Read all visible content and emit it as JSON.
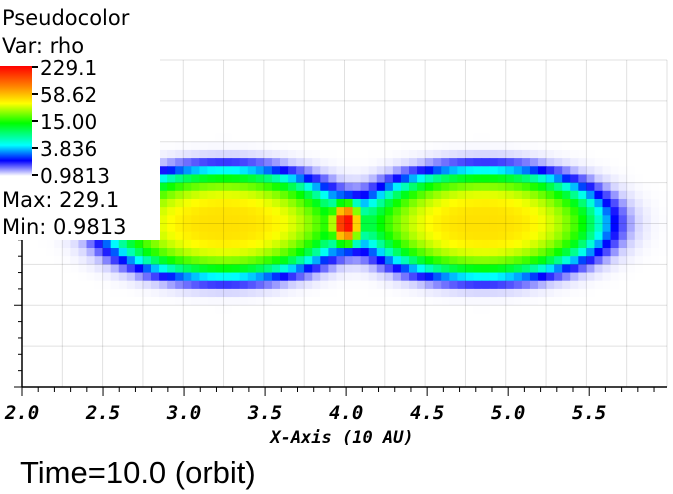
{
  "chart_data": {
    "type": "heatmap",
    "title": "Pseudocolor",
    "variable_label": "Var: rho",
    "colorbar": {
      "ticks": [
        "229.1",
        "58.62",
        "15.00",
        "3.836",
        "0.9813"
      ],
      "scale": "log",
      "range": [
        0.9813,
        229.1
      ],
      "colormap": "hot-desaturated rainbow (red-orange-yellow-green-cyan-blue-white)"
    },
    "max_label": "Max:  229.1",
    "min_label": "Min:  0.9813",
    "max": 229.1,
    "min": 0.9813,
    "xlabel": "X-Axis (10 AU)",
    "x_ticks": [
      "2.0",
      "2.5",
      "3.0",
      "3.5",
      "4.0",
      "4.5",
      "5.0",
      "5.5"
    ],
    "xlim": [
      2.0,
      5.98
    ],
    "structure": {
      "central_peak": {
        "x": 4.0,
        "value": 229.1
      },
      "left_lobe": {
        "x_center": 3.25,
        "peak_value": 58
      },
      "right_lobe": {
        "x_center": 4.85,
        "peak_value": 58
      }
    },
    "grid": true,
    "legend_position": "top-left"
  },
  "footer": {
    "time_label": "Time=10.0 (orbit)"
  }
}
